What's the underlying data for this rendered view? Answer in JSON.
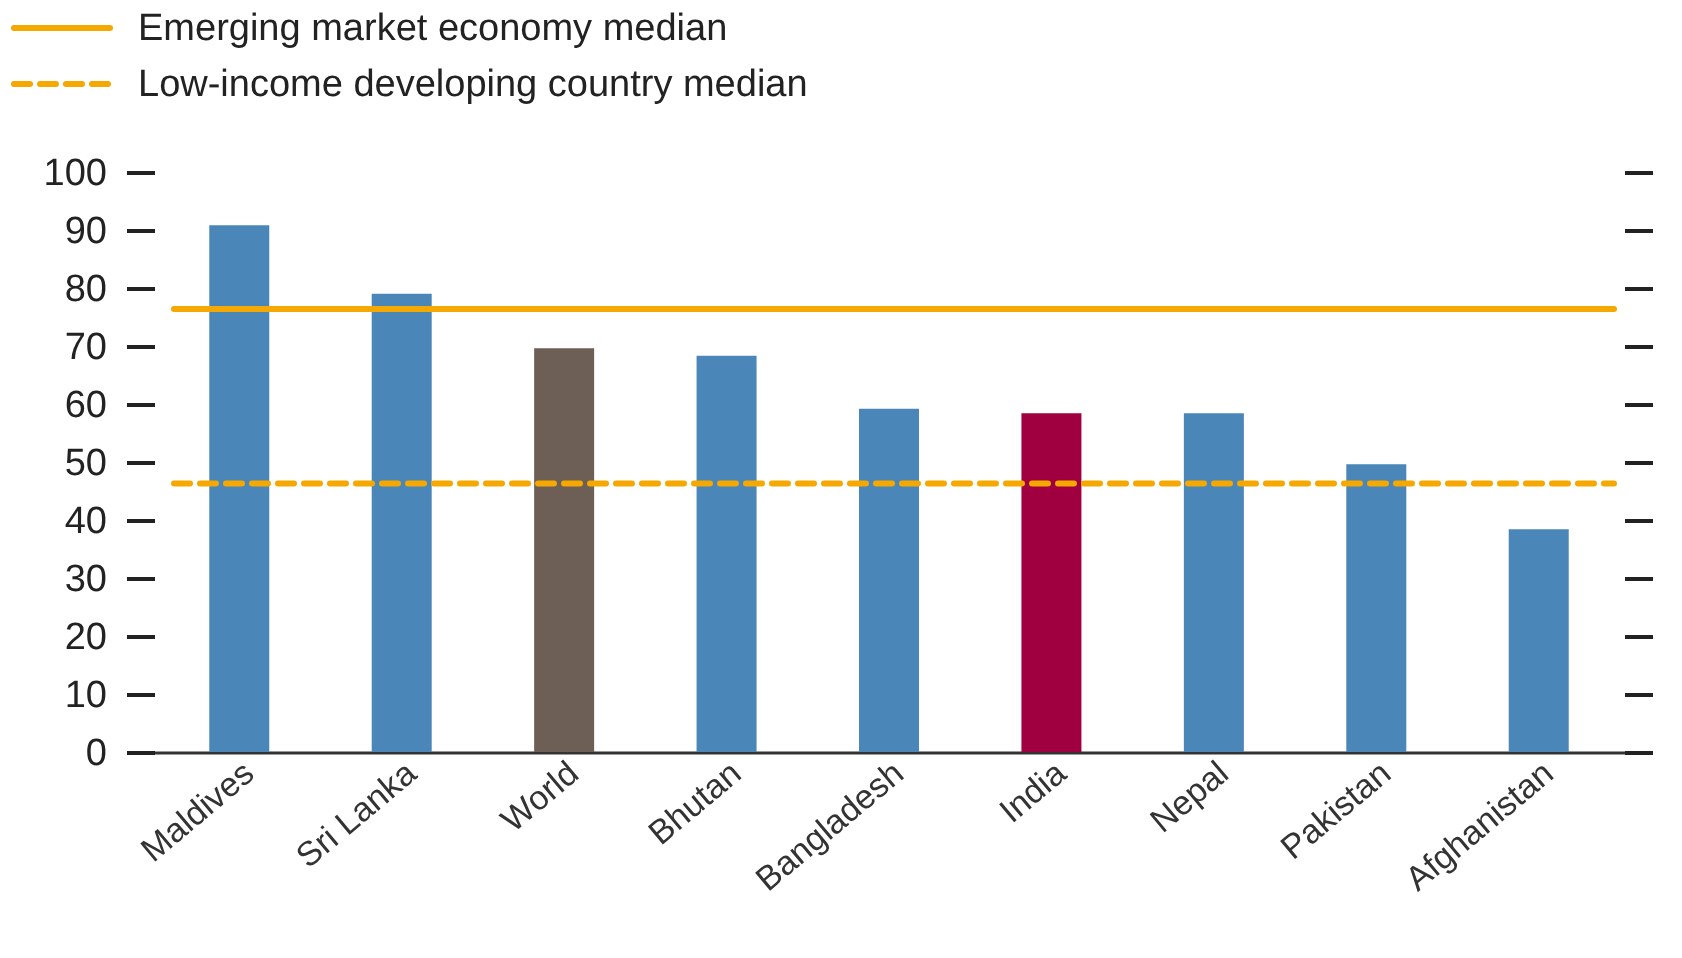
{
  "chart_data": {
    "type": "bar",
    "categories": [
      "Maldives",
      "Sri Lanka",
      "World",
      "Bhutan",
      "Bangladesh",
      "India",
      "Nepal",
      "Pakistan",
      "Afghanistan"
    ],
    "values": [
      90.8,
      79,
      69.6,
      68.3,
      59.2,
      58.4,
      58.4,
      49.6,
      38.4
    ],
    "colors": [
      "#4a86b8",
      "#4a86b8",
      "#6e5f56",
      "#4a86b8",
      "#4a86b8",
      "#a0003f",
      "#4a86b8",
      "#4a86b8",
      "#4a86b8"
    ],
    "ylim": [
      0,
      100
    ],
    "yticks": [
      0,
      10,
      20,
      30,
      40,
      50,
      60,
      70,
      80,
      90,
      100
    ],
    "ref_lines": [
      {
        "axis": "y",
        "value": 76.4,
        "label": "Emerging market economy median",
        "color": "#f5a800",
        "line_style": "solid"
      },
      {
        "axis": "y",
        "value": 46.3,
        "label": "Low-income developing country median",
        "color": "#f5a800",
        "line_style": "dashed"
      }
    ],
    "legend": "top left",
    "grid": false
  }
}
